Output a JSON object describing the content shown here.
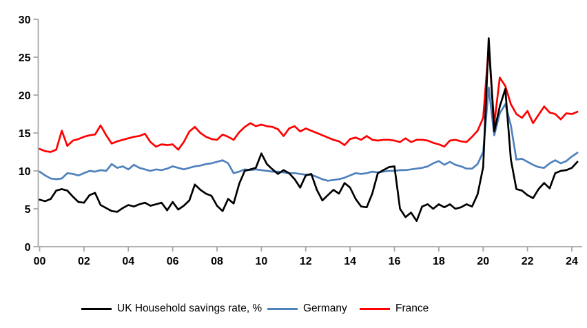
{
  "chart_data": {
    "type": "line",
    "title": "",
    "x_unit": "quarterly",
    "x_start": "2000Q1",
    "x_end": "2024Q2",
    "x_tick_labels": [
      "00",
      "02",
      "04",
      "06",
      "08",
      "10",
      "12",
      "14",
      "16",
      "18",
      "20",
      "22",
      "24"
    ],
    "y_ticks": [
      0,
      5,
      10,
      15,
      20,
      25,
      30
    ],
    "ylim": [
      0,
      30
    ],
    "grid": false,
    "legend_position": "bottom",
    "axis_color": "#A6A6A6",
    "series": [
      {
        "name": "UK Household savings rate, %",
        "color": "#000000",
        "values": [
          6.2,
          6.0,
          6.3,
          7.4,
          7.6,
          7.4,
          6.6,
          5.9,
          5.8,
          6.8,
          7.1,
          5.5,
          5.1,
          4.7,
          4.6,
          5.1,
          5.5,
          5.3,
          5.6,
          5.8,
          5.4,
          5.6,
          5.8,
          4.8,
          5.9,
          4.9,
          5.4,
          6.1,
          8.2,
          7.5,
          7.0,
          6.7,
          5.4,
          4.7,
          6.3,
          5.7,
          8.3,
          10.0,
          10.2,
          10.4,
          12.3,
          10.9,
          10.2,
          9.6,
          10.1,
          9.7,
          8.9,
          7.8,
          9.4,
          9.6,
          7.5,
          6.1,
          6.8,
          7.5,
          7.0,
          8.4,
          7.8,
          6.3,
          5.3,
          5.2,
          7.0,
          9.7,
          10.1,
          10.5,
          10.6,
          5.0,
          3.9,
          4.5,
          3.4,
          5.3,
          5.6,
          5.0,
          5.6,
          5.2,
          5.6,
          5.0,
          5.2,
          5.6,
          5.3,
          6.9,
          10.5,
          27.5,
          15.2,
          18.5,
          20.8,
          11.5,
          7.6,
          7.4,
          6.8,
          6.4,
          7.6,
          8.4,
          7.7,
          9.7,
          10.0,
          10.1,
          10.4,
          11.2
        ]
      },
      {
        "name": "Germany",
        "color": "#4F81BD",
        "values": [
          9.9,
          9.4,
          9.0,
          8.9,
          9.0,
          9.7,
          9.6,
          9.4,
          9.7,
          10.0,
          9.9,
          10.1,
          10.0,
          10.9,
          10.4,
          10.6,
          10.2,
          10.8,
          10.4,
          10.2,
          10.0,
          10.2,
          10.1,
          10.3,
          10.6,
          10.4,
          10.2,
          10.4,
          10.6,
          10.7,
          10.9,
          11.0,
          11.2,
          11.4,
          11.0,
          9.7,
          9.9,
          10.2,
          10.1,
          10.2,
          10.1,
          10.0,
          9.9,
          9.9,
          9.8,
          9.7,
          9.7,
          9.6,
          9.5,
          9.5,
          9.2,
          8.9,
          8.7,
          8.8,
          8.9,
          9.1,
          9.4,
          9.7,
          9.6,
          9.7,
          9.9,
          9.8,
          9.9,
          10.0,
          10.0,
          10.1,
          10.1,
          10.2,
          10.3,
          10.4,
          10.6,
          11.0,
          11.3,
          10.8,
          11.2,
          10.8,
          10.6,
          10.3,
          10.3,
          10.9,
          12.5,
          21.0,
          14.7,
          17.6,
          18.8,
          16.0,
          11.5,
          11.6,
          11.2,
          10.8,
          10.5,
          10.4,
          11.0,
          11.4,
          11.0,
          11.3,
          11.9,
          12.4
        ]
      },
      {
        "name": "France",
        "color": "#FF0000",
        "values": [
          12.9,
          12.6,
          12.5,
          12.8,
          15.3,
          13.3,
          14.0,
          14.2,
          14.5,
          14.7,
          14.8,
          16.0,
          14.7,
          13.6,
          13.9,
          14.1,
          14.3,
          14.5,
          14.6,
          14.9,
          13.8,
          13.2,
          13.5,
          13.4,
          13.5,
          12.8,
          13.8,
          15.2,
          15.8,
          15.0,
          14.5,
          14.2,
          14.1,
          14.8,
          14.5,
          14.1,
          15.1,
          15.8,
          16.3,
          15.9,
          16.1,
          15.9,
          15.8,
          15.5,
          14.6,
          15.6,
          15.9,
          15.2,
          15.6,
          15.3,
          15.0,
          14.7,
          14.4,
          14.1,
          13.9,
          13.4,
          14.2,
          14.4,
          14.1,
          14.6,
          14.1,
          14.0,
          14.1,
          14.1,
          14.0,
          13.8,
          14.3,
          13.8,
          14.1,
          14.1,
          14.0,
          13.7,
          13.5,
          13.2,
          14.0,
          14.1,
          13.9,
          13.8,
          14.5,
          15.3,
          17.0,
          26.3,
          16.2,
          22.3,
          21.2,
          18.8,
          17.5,
          17.0,
          17.9,
          16.3,
          17.4,
          18.5,
          17.7,
          17.5,
          16.8,
          17.6,
          17.5,
          17.8
        ]
      }
    ]
  }
}
